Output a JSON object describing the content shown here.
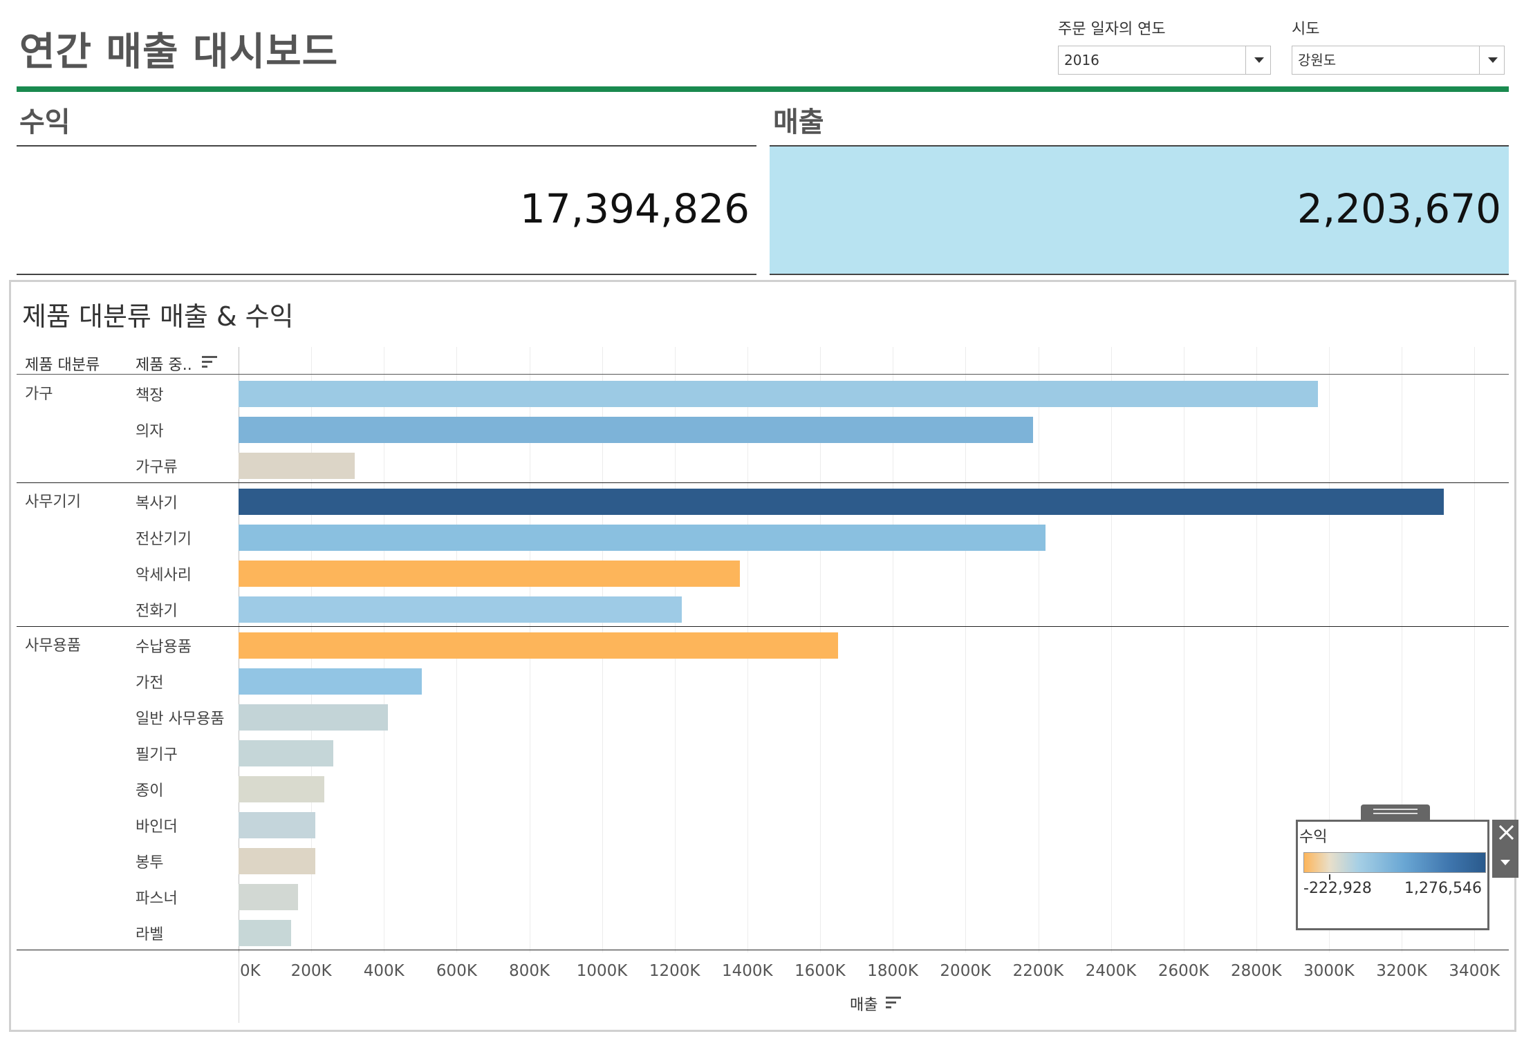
{
  "title": "연간 매출 대시보드",
  "filters": {
    "year": {
      "label": "주문 일자의 연도",
      "value": "2016"
    },
    "region": {
      "label": "시도",
      "value": "강원도"
    }
  },
  "kpis": {
    "profit": {
      "label": "수익",
      "value": "17,394,826"
    },
    "sales": {
      "label": "매출",
      "value": "2,203,670",
      "highlight_color": "#b8e3f1"
    }
  },
  "chart_panel": {
    "title": "제품 대분류 매출 & 수익",
    "col_category": "제품 대분류",
    "col_subcategory": "제품 중..",
    "axis_title": "매출"
  },
  "legend": {
    "title": "수익",
    "min": "-222,928",
    "max": "1,276,546"
  },
  "chart_data": {
    "type": "bar",
    "orientation": "horizontal",
    "title": "제품 대분류 매출 & 수익",
    "xlabel": "매출",
    "xlim": [
      0,
      3500000
    ],
    "x_ticks": [
      0,
      200000,
      400000,
      600000,
      800000,
      1000000,
      1200000,
      1400000,
      1600000,
      1800000,
      2000000,
      2200000,
      2400000,
      2600000,
      2800000,
      3000000,
      3200000,
      3400000
    ],
    "x_tick_labels": [
      "0K",
      "200K",
      "400K",
      "600K",
      "800K",
      "1000K",
      "1200K",
      "1400K",
      "1600K",
      "1800K",
      "2000K",
      "2200K",
      "2400K",
      "2600K",
      "2800K",
      "3000K",
      "3200K",
      "3400K"
    ],
    "color_encoding": "수익",
    "groups": [
      {
        "category": "가구",
        "items": [
          {
            "subcategory": "책장",
            "sales": 2970000,
            "color": "#9ccae4"
          },
          {
            "subcategory": "의자",
            "sales": 2185000,
            "color": "#7db3d8"
          },
          {
            "subcategory": "가구류",
            "sales": 320000,
            "color": "#dcd5c7"
          }
        ]
      },
      {
        "category": "사무기기",
        "items": [
          {
            "subcategory": "복사기",
            "sales": 3315000,
            "color": "#2d5b8b"
          },
          {
            "subcategory": "전산기기",
            "sales": 2220000,
            "color": "#8ac0e0"
          },
          {
            "subcategory": "악세사리",
            "sales": 1380000,
            "color": "#fdb55a"
          },
          {
            "subcategory": "전화기",
            "sales": 1220000,
            "color": "#9ecbe6"
          }
        ]
      },
      {
        "category": "사무용품",
        "items": [
          {
            "subcategory": "수납용품",
            "sales": 1650000,
            "color": "#fdb55a"
          },
          {
            "subcategory": "가전",
            "sales": 505000,
            "color": "#92c5e4"
          },
          {
            "subcategory": "일반 사무용품",
            "sales": 410000,
            "color": "#c3d4d7"
          },
          {
            "subcategory": "필기구",
            "sales": 260000,
            "color": "#c5d6d8"
          },
          {
            "subcategory": "종이",
            "sales": 235000,
            "color": "#d9dace"
          },
          {
            "subcategory": "바인더",
            "sales": 212000,
            "color": "#c4d5db"
          },
          {
            "subcategory": "봉투",
            "sales": 212000,
            "color": "#ddd5c5"
          },
          {
            "subcategory": "파스너",
            "sales": 163000,
            "color": "#d2d8d3"
          },
          {
            "subcategory": "라벨",
            "sales": 145000,
            "color": "#c7d7d7"
          }
        ]
      }
    ]
  }
}
